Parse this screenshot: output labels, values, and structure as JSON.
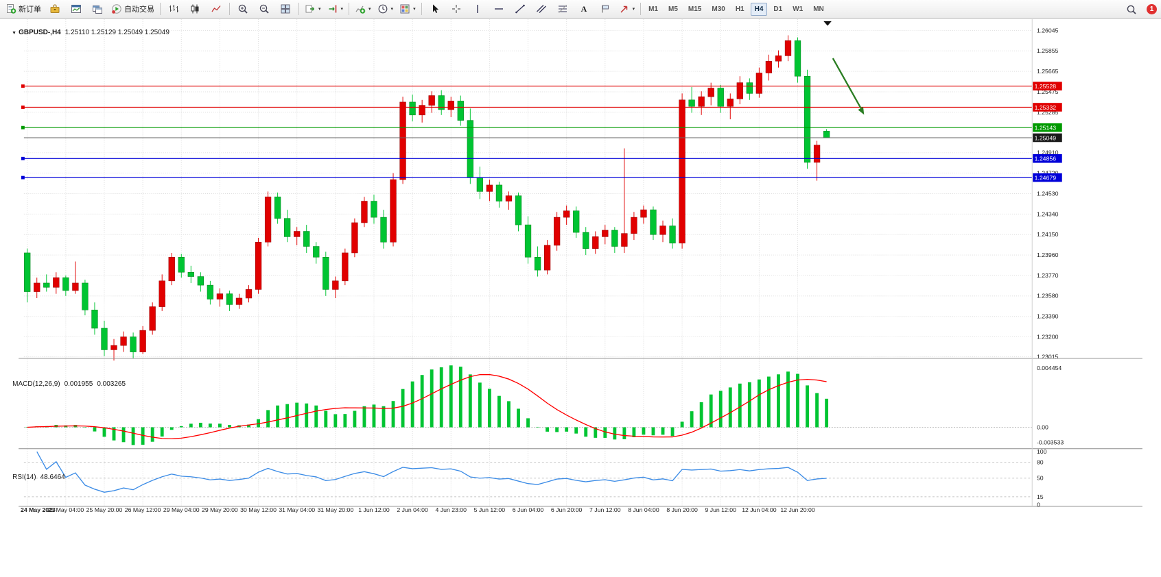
{
  "toolbar": {
    "groups": [
      {
        "items": [
          {
            "name": "new-order-button",
            "icon": "new-order",
            "label": "新订单"
          },
          {
            "name": "metaeditor-button",
            "icon": "toolbox"
          },
          {
            "name": "chart-window-button",
            "icon": "chart-window"
          },
          {
            "name": "profiles-button",
            "icon": "profiles"
          },
          {
            "name": "auto-trading-button",
            "icon": "autotrade",
            "label": "自动交易"
          }
        ]
      },
      {
        "items": [
          {
            "name": "bar-chart-button",
            "icon": "bars"
          },
          {
            "name": "candlestick-chart-button",
            "icon": "candles"
          },
          {
            "name": "line-chart-button",
            "icon": "linechart"
          }
        ]
      },
      {
        "items": [
          {
            "name": "zoom-in-button",
            "icon": "zoom-in"
          },
          {
            "name": "zoom-out-button",
            "icon": "zoom-out"
          },
          {
            "name": "tile-windows-button",
            "icon": "tile"
          }
        ]
      },
      {
        "items": [
          {
            "name": "auto-scroll-button",
            "icon": "autoscroll",
            "caret": true
          },
          {
            "name": "chart-shift-button",
            "icon": "shift",
            "caret": true
          }
        ]
      },
      {
        "items": [
          {
            "name": "indicators-button",
            "icon": "indicators",
            "caret": true
          },
          {
            "name": "periods-button",
            "icon": "clock",
            "caret": true
          },
          {
            "name": "templates-button",
            "icon": "template",
            "caret": true
          }
        ]
      },
      {
        "items": [
          {
            "name": "cursor-button",
            "icon": "cursor"
          },
          {
            "name": "crosshair-button",
            "icon": "crosshair"
          },
          {
            "name": "vertical-line-button",
            "icon": "vline"
          },
          {
            "name": "horizontal-line-button",
            "icon": "hline"
          },
          {
            "name": "trendline-button",
            "icon": "trendline"
          },
          {
            "name": "equidistant-channel-button",
            "icon": "channel"
          },
          {
            "name": "fibonacci-button",
            "icon": "fibo"
          },
          {
            "name": "text-button",
            "icon": "text"
          },
          {
            "name": "text-label-button",
            "icon": "textlabel"
          },
          {
            "name": "arrows-button",
            "icon": "arrowtool",
            "caret": true
          }
        ]
      }
    ],
    "timeframes": [
      "M1",
      "M5",
      "M15",
      "M30",
      "H1",
      "H4",
      "D1",
      "W1",
      "MN"
    ],
    "active_timeframe": "H4",
    "notification_count": "1"
  },
  "chart": {
    "symbol_period": "GBPUSD-,H4",
    "ohlc": "1.25110 1.25129 1.25049 1.25049"
  },
  "chart_data": {
    "type": "candlestick",
    "symbol": "GBPUSD",
    "period": "H4",
    "price_range": {
      "top": 1.26045,
      "bottom": 1.23015
    },
    "price_axis": [
      "1.26045",
      "1.25855",
      "1.25665",
      "1.25475",
      "1.25285",
      "1.24910",
      "1.24720",
      "1.24530",
      "1.24340",
      "1.24150",
      "1.23960",
      "1.23770",
      "1.23580",
      "1.23390",
      "1.23200",
      "1.23015"
    ],
    "time_axis": [
      "24 May 2023",
      "25 May 04:00",
      "25 May 20:00",
      "26 May 12:00",
      "29 May 04:00",
      "29 May 20:00",
      "30 May 12:00",
      "31 May 04:00",
      "31 May 20:00",
      "1 Jun 12:00",
      "2 Jun 04:00",
      "4 Jun 23:00",
      "5 Jun 12:00",
      "6 Jun 04:00",
      "6 Jun 20:00",
      "7 Jun 12:00",
      "8 Jun 04:00",
      "8 Jun 20:00",
      "9 Jun 12:00",
      "12 Jun 04:00",
      "12 Jun 20:00"
    ],
    "candles": [
      [
        1.2398,
        1.2402,
        1.2352,
        1.2362
      ],
      [
        1.2362,
        1.2375,
        1.2356,
        1.237
      ],
      [
        1.237,
        1.2378,
        1.2362,
        1.2366
      ],
      [
        1.2366,
        1.238,
        1.236,
        1.2375
      ],
      [
        1.2375,
        1.2377,
        1.2358,
        1.2363
      ],
      [
        1.2363,
        1.239,
        1.236,
        1.237
      ],
      [
        1.237,
        1.2373,
        1.234,
        1.2345
      ],
      [
        1.2345,
        1.2352,
        1.2322,
        1.2328
      ],
      [
        1.2328,
        1.2335,
        1.2302,
        1.2308
      ],
      [
        1.2308,
        1.2318,
        1.2298,
        1.2312
      ],
      [
        1.2312,
        1.2325,
        1.2306,
        1.232
      ],
      [
        1.232,
        1.2324,
        1.23,
        1.2306
      ],
      [
        1.2306,
        1.233,
        1.2304,
        1.2326
      ],
      [
        1.2326,
        1.2352,
        1.2322,
        1.2348
      ],
      [
        1.2348,
        1.2378,
        1.2344,
        1.2372
      ],
      [
        1.2372,
        1.2398,
        1.2368,
        1.2394
      ],
      [
        1.2394,
        1.2397,
        1.2375,
        1.238
      ],
      [
        1.238,
        1.2386,
        1.237,
        1.2376
      ],
      [
        1.2376,
        1.238,
        1.2362,
        1.2368
      ],
      [
        1.2368,
        1.2372,
        1.235,
        1.2355
      ],
      [
        1.2355,
        1.2365,
        1.2348,
        1.236
      ],
      [
        1.236,
        1.2363,
        1.2344,
        1.235
      ],
      [
        1.235,
        1.236,
        1.2346,
        1.2356
      ],
      [
        1.2356,
        1.2368,
        1.2352,
        1.2364
      ],
      [
        1.2364,
        1.2412,
        1.236,
        1.2408
      ],
      [
        1.2408,
        1.2455,
        1.2404,
        1.245
      ],
      [
        1.245,
        1.2454,
        1.2425,
        1.243
      ],
      [
        1.243,
        1.2438,
        1.2408,
        1.2413
      ],
      [
        1.2413,
        1.2422,
        1.2405,
        1.2418
      ],
      [
        1.2418,
        1.2424,
        1.2398,
        1.2404
      ],
      [
        1.2404,
        1.2408,
        1.2388,
        1.2394
      ],
      [
        1.2394,
        1.2399,
        1.2358,
        1.2364
      ],
      [
        1.2364,
        1.2376,
        1.2356,
        1.2372
      ],
      [
        1.2372,
        1.2402,
        1.2368,
        1.2398
      ],
      [
        1.2398,
        1.243,
        1.2394,
        1.2426
      ],
      [
        1.2426,
        1.245,
        1.2422,
        1.2446
      ],
      [
        1.2446,
        1.2452,
        1.2425,
        1.2431
      ],
      [
        1.2431,
        1.2438,
        1.2402,
        1.2408
      ],
      [
        1.2408,
        1.2472,
        1.2404,
        1.2466
      ],
      [
        1.2466,
        1.2543,
        1.2462,
        1.2538
      ],
      [
        1.2538,
        1.2545,
        1.252,
        1.2526
      ],
      [
        1.2526,
        1.254,
        1.2519,
        1.2535
      ],
      [
        1.2535,
        1.2548,
        1.2528,
        1.2544
      ],
      [
        1.2544,
        1.2549,
        1.2526,
        1.2531
      ],
      [
        1.2531,
        1.2543,
        1.2524,
        1.2539
      ],
      [
        1.2539,
        1.2544,
        1.2516,
        1.2521
      ],
      [
        1.2521,
        1.2532,
        1.2462,
        1.2468
      ],
      [
        1.2468,
        1.2478,
        1.2448,
        1.2455
      ],
      [
        1.2455,
        1.2466,
        1.2446,
        1.2461
      ],
      [
        1.2461,
        1.2464,
        1.244,
        1.2446
      ],
      [
        1.2446,
        1.2455,
        1.2438,
        1.2451
      ],
      [
        1.2451,
        1.2454,
        1.2418,
        1.2424
      ],
      [
        1.2424,
        1.2432,
        1.2388,
        1.2394
      ],
      [
        1.2394,
        1.2404,
        1.2376,
        1.2382
      ],
      [
        1.2382,
        1.241,
        1.2378,
        1.2405
      ],
      [
        1.2405,
        1.2436,
        1.24,
        1.2431
      ],
      [
        1.2431,
        1.2442,
        1.2424,
        1.2437
      ],
      [
        1.2437,
        1.2441,
        1.2412,
        1.2417
      ],
      [
        1.2417,
        1.2422,
        1.2396,
        1.2402
      ],
      [
        1.2402,
        1.2418,
        1.2397,
        1.2413
      ],
      [
        1.2413,
        1.2424,
        1.2406,
        1.2419
      ],
      [
        1.2419,
        1.2422,
        1.2398,
        1.2404
      ],
      [
        1.2404,
        1.2495,
        1.2398,
        1.2416
      ],
      [
        1.2416,
        1.2436,
        1.241,
        1.2431
      ],
      [
        1.2431,
        1.2442,
        1.2425,
        1.2438
      ],
      [
        1.2438,
        1.2441,
        1.241,
        1.2415
      ],
      [
        1.2415,
        1.2428,
        1.2408,
        1.2423
      ],
      [
        1.2423,
        1.243,
        1.2402,
        1.2407
      ],
      [
        1.2407,
        1.2546,
        1.2402,
        1.254
      ],
      [
        1.254,
        1.2552,
        1.2528,
        1.2534
      ],
      [
        1.2534,
        1.2548,
        1.2526,
        1.2543
      ],
      [
        1.2543,
        1.2556,
        1.2535,
        1.2551
      ],
      [
        1.2551,
        1.2554,
        1.2528,
        1.2534
      ],
      [
        1.2534,
        1.2546,
        1.2522,
        1.2541
      ],
      [
        1.2541,
        1.2562,
        1.2536,
        1.2556
      ],
      [
        1.2556,
        1.256,
        1.254,
        1.2546
      ],
      [
        1.2546,
        1.257,
        1.2542,
        1.2565
      ],
      [
        1.2565,
        1.2582,
        1.2558,
        1.2576
      ],
      [
        1.2576,
        1.2586,
        1.257,
        1.2581
      ],
      [
        1.2581,
        1.26,
        1.2576,
        1.2595
      ],
      [
        1.2595,
        1.2598,
        1.2556,
        1.2562
      ],
      [
        1.2562,
        1.2568,
        1.2476,
        1.2482
      ],
      [
        1.2482,
        1.2502,
        1.2465,
        1.2498
      ],
      [
        1.2511,
        1.25129,
        1.25049,
        1.25049
      ]
    ],
    "hlines": [
      {
        "price": 1.25528,
        "label": "1.25528",
        "color": "#e00000"
      },
      {
        "price": 1.25332,
        "label": "1.25332",
        "color": "#e00000"
      },
      {
        "price": 1.25143,
        "label": "1.25143",
        "color": "#009a00"
      },
      {
        "price": 1.24856,
        "label": "1.24856",
        "color": "#0000d8"
      },
      {
        "price": 1.24679,
        "label": "1.24679",
        "color": "#0000d8"
      }
    ],
    "current_price": 1.25049,
    "current_price_label": "1.25049",
    "annotation_arrow": {
      "color": "#2a7d22"
    },
    "macd": {
      "label": "MACD(12,26,9)",
      "value1": "0.001955",
      "value2": "0.003265",
      "fast": 12,
      "slow": 26,
      "signal": 9,
      "axis_max": "0.004454",
      "axis_zero": "0.00",
      "axis_min": "-0.003533"
    },
    "rsi": {
      "label": "RSI(14)",
      "value": "48.6464",
      "period": 14,
      "axis": [
        100,
        80,
        50,
        15,
        0
      ],
      "levels": [
        80,
        50,
        15
      ]
    },
    "colors": {
      "up": "#e10000",
      "up_edge": "#9c0000",
      "down": "#00c432",
      "down_edge": "#008a20",
      "macd_bar": "#00c432",
      "macd_signal": "#ff0000",
      "rsi_line": "#3c8ce6",
      "grid": "#dcdcdc",
      "current_line": "#666666",
      "current_badge": "#1a1a1a"
    }
  }
}
